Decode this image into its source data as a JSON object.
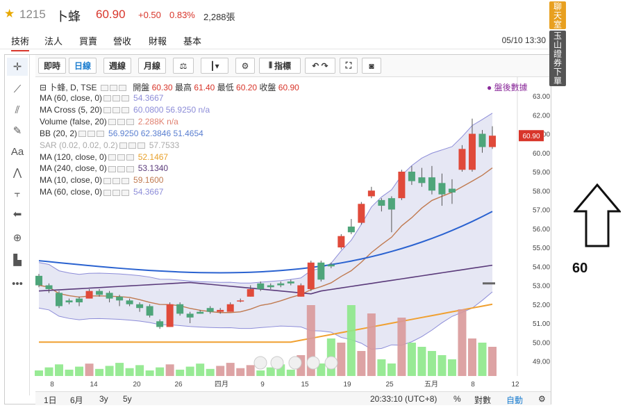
{
  "header": {
    "code": "1215",
    "name": "卜蜂",
    "price": "60.90",
    "change": "+0.50",
    "change_pct": "0.83%",
    "volume": "2,288張"
  },
  "tabs": [
    {
      "label": "技術"
    },
    {
      "label": "法人"
    },
    {
      "label": "買賣"
    },
    {
      "label": "營收"
    },
    {
      "label": "財報"
    },
    {
      "label": "基本"
    }
  ],
  "datetime": "05/10 13:30",
  "toolbar": {
    "b1": "即時",
    "b2": "日線",
    "b3": "週線",
    "b4": "月線",
    "b5": "指標"
  },
  "legend": {
    "title": "卜蜂, D, TSE",
    "open_l": "開盤",
    "open": "60.30",
    "high_l": "最高",
    "high": "61.40",
    "low_l": "最低",
    "low": "60.20",
    "close_l": "收盤",
    "close": "60.90",
    "after": "● 盤後數據"
  },
  "indicators": [
    {
      "name": "MA (60, close, 0)",
      "values": "54.3667",
      "color": "#8c8cd8"
    },
    {
      "name": "MA Cross (5, 20)",
      "values": "60.0800  56.9250  n/a",
      "color": "#8c8cd8"
    },
    {
      "name": "Volume (false, 20)",
      "values": "2.288K  n/a",
      "color": "#e08070"
    },
    {
      "name": "BB (20, 2)",
      "values": "56.9250  62.3846  51.4654",
      "color": "#5a7fd0"
    },
    {
      "name": "SAR (0.02, 0.02, 0.2)",
      "values": "57.7533",
      "color": "#aaaaaa"
    },
    {
      "name": "MA (120, close, 0)",
      "values": "52.1467",
      "color": "#e8a02a"
    },
    {
      "name": "MA (240, close, 0)",
      "values": "53.1340",
      "color": "#5a3a7a"
    },
    {
      "name": "MA (10, close, 0)",
      "values": "59.1600",
      "color": "#c07a50"
    },
    {
      "name": "MA (60, close, 0)",
      "values": "54.3667",
      "color": "#8c8cd8"
    }
  ],
  "price_tag": "60.90",
  "yticks": [
    "63.00",
    "62.00",
    "61.00",
    "60.00",
    "59.00",
    "58.00",
    "57.00",
    "56.00",
    "55.00",
    "54.00",
    "53.00",
    "52.00",
    "51.00",
    "50.00",
    "49.00"
  ],
  "xticks": [
    "8",
    "14",
    "20",
    "26",
    "四月",
    "9",
    "15",
    "19",
    "25",
    "五月",
    "8",
    "12"
  ],
  "bottom": {
    "r1": "1日",
    "r2": "6月",
    "r3": "3y",
    "r4": "5y",
    "time": "20:33:10 (UTC+8)",
    "pct": "%",
    "log": "對數",
    "auto": "自動"
  },
  "side": {
    "chat": "聊天室",
    "broker": "玉山證券下單"
  },
  "annotation": "60",
  "chart_data": {
    "type": "candlestick",
    "candles": [
      [
        53.5,
        53.0,
        53.6,
        52.9
      ],
      [
        53.0,
        52.8,
        53.1,
        52.6
      ],
      [
        52.6,
        51.9,
        52.7,
        51.8
      ],
      [
        52.2,
        52.1,
        52.3,
        52.0
      ],
      [
        52.3,
        52.1,
        52.4,
        51.9
      ],
      [
        52.3,
        52.7,
        52.8,
        52.3
      ],
      [
        52.7,
        52.5,
        52.8,
        52.4
      ],
      [
        52.6,
        52.3,
        52.7,
        52.1
      ],
      [
        52.4,
        52.2,
        52.5,
        51.9
      ],
      [
        52.2,
        52.0,
        52.3,
        51.9
      ],
      [
        52.0,
        51.8,
        52.1,
        51.6
      ],
      [
        51.9,
        51.4,
        52.0,
        51.3
      ],
      [
        51.1,
        50.8,
        51.2,
        50.7
      ],
      [
        50.8,
        52.0,
        52.1,
        50.8
      ],
      [
        52.0,
        51.5,
        52.1,
        51.4
      ],
      [
        51.5,
        51.3,
        51.6,
        51.0
      ],
      [
        51.6,
        51.5,
        51.7,
        51.5
      ],
      [
        51.8,
        51.6,
        51.9,
        51.5
      ],
      [
        51.6,
        51.7,
        51.8,
        51.5
      ],
      [
        51.6,
        52.0,
        52.1,
        51.6
      ],
      [
        52.2,
        52.2,
        52.3,
        52.1
      ],
      [
        52.4,
        52.8,
        53.0,
        52.4
      ],
      [
        53.1,
        52.8,
        53.2,
        52.7
      ],
      [
        53.0,
        52.9,
        53.1,
        52.8
      ],
      [
        53.1,
        53.0,
        53.2,
        52.9
      ],
      [
        53.2,
        53.1,
        53.3,
        53.0
      ],
      [
        52.4,
        53.0,
        53.1,
        52.4
      ],
      [
        52.8,
        54.2,
        54.3,
        52.7
      ],
      [
        54.2,
        53.3,
        54.3,
        53.2
      ],
      [
        54.1,
        54.0,
        54.2,
        53.9
      ],
      [
        55.0,
        55.6,
        55.7,
        54.9
      ],
      [
        56.1,
        55.8,
        56.5,
        55.7
      ],
      [
        56.3,
        57.3,
        57.4,
        56.2
      ],
      [
        57.7,
        58.0,
        58.2,
        57.6
      ],
      [
        57.5,
        57.2,
        57.6,
        56.9
      ],
      [
        57.6,
        57.0,
        57.7,
        55.8
      ],
      [
        57.6,
        59.0,
        59.1,
        57.5
      ],
      [
        59.0,
        58.5,
        59.3,
        58.3
      ],
      [
        58.7,
        58.4,
        59.2,
        58.2
      ],
      [
        58.7,
        58.0,
        59.3,
        57.8
      ],
      [
        58.4,
        57.8,
        58.9,
        57.2
      ],
      [
        58.1,
        57.9,
        58.6,
        57.3
      ],
      [
        59.1,
        60.2,
        60.4,
        59.0
      ],
      [
        59.1,
        61.0,
        61.8,
        59.0
      ],
      [
        61.0,
        60.3,
        61.2,
        60.0
      ],
      [
        60.3,
        60.9,
        61.4,
        60.2
      ]
    ],
    "volume_color_up": "#d9999a",
    "volume_color_down": "#8de88a"
  }
}
